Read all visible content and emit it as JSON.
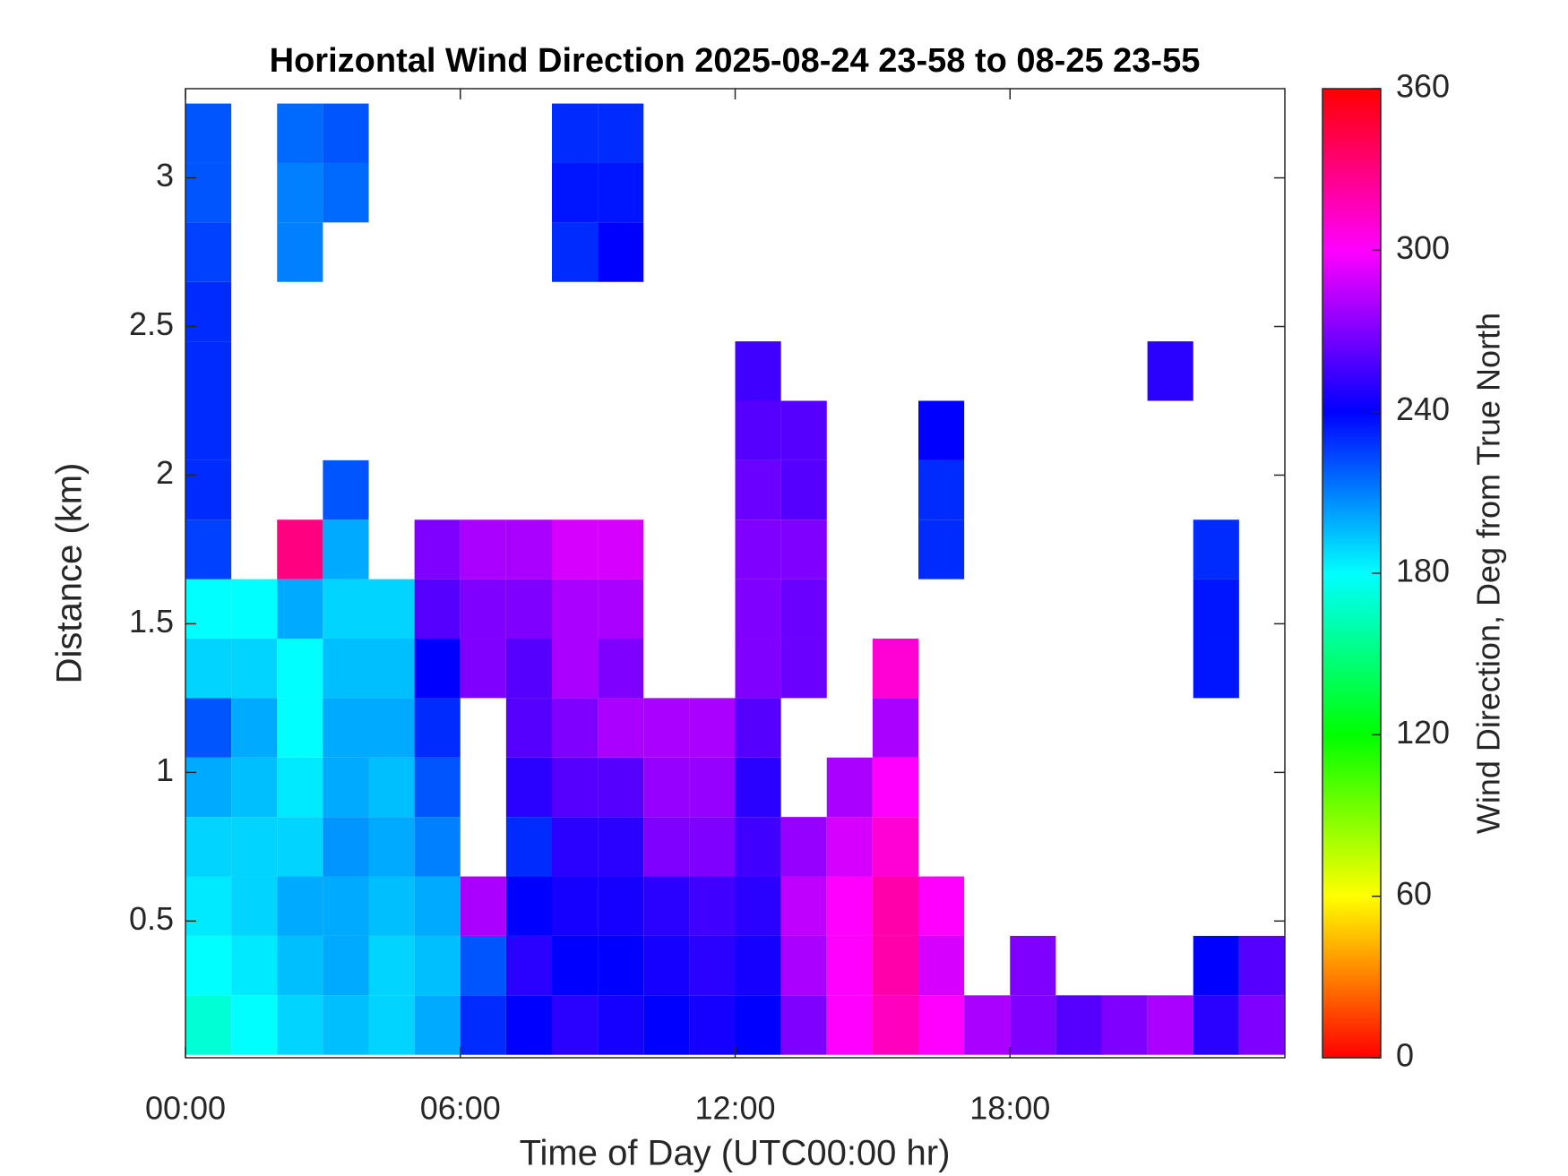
{
  "chart_data": {
    "type": "heatmap",
    "title": "Horizontal Wind Direction 2025-08-24 23-58 to 08-25 23-55",
    "xlabel": "Time of Day (UTC00:00 hr)",
    "ylabel": "Distance (km)",
    "colorbar_label": "Wind Direction, Deg from True North",
    "colormap": "hsv",
    "clim": [
      0,
      360
    ],
    "cticks": [
      0,
      60,
      120,
      180,
      240,
      300,
      360
    ],
    "xlim": [
      0,
      24
    ],
    "xticks": [
      {
        "value": 0,
        "label": "00:00"
      },
      {
        "value": 6,
        "label": "06:00"
      },
      {
        "value": 12,
        "label": "12:00"
      },
      {
        "value": 18,
        "label": "18:00"
      }
    ],
    "ylim": [
      0.04,
      3.3
    ],
    "yticks": [
      0.5,
      1,
      1.5,
      2,
      2.5,
      3
    ],
    "x": [
      0.5,
      1.5,
      2.5,
      3.5,
      4.5,
      5.5,
      6.5,
      7.5,
      8.5,
      9.5,
      10.5,
      11.5,
      12.5,
      13.5,
      14.5,
      15.5,
      16.5,
      17.5,
      18.5,
      19.5,
      20.5,
      21.5,
      22.5,
      23.5
    ],
    "y": [
      0.15,
      0.35,
      0.55,
      0.75,
      0.95,
      1.15,
      1.35,
      1.55,
      1.75,
      1.95,
      2.15,
      2.35,
      2.55,
      2.75,
      2.95,
      3.15
    ],
    "values": [
      [
        170,
        180,
        185,
        190,
        200,
        220,
        190,
        180,
        225,
        230,
        230,
        230,
        230,
        225,
        220,
        220
      ],
      [
        180,
        185,
        190,
        190,
        195,
        200,
        190,
        180,
        null,
        null,
        null,
        null,
        null,
        null,
        null,
        null
      ],
      [
        190,
        195,
        200,
        190,
        185,
        180,
        180,
        200,
        330,
        null,
        null,
        null,
        null,
        210,
        210,
        215
      ],
      [
        195,
        200,
        200,
        205,
        200,
        200,
        195,
        190,
        200,
        220,
        null,
        null,
        null,
        null,
        215,
        220
      ],
      [
        190,
        190,
        195,
        200,
        195,
        200,
        195,
        190,
        null,
        null,
        null,
        null,
        null,
        null,
        null,
        null
      ],
      [
        200,
        195,
        200,
        210,
        220,
        230,
        240,
        260,
        270,
        null,
        null,
        null,
        null,
        null,
        null,
        null
      ],
      [
        230,
        220,
        280,
        null,
        null,
        null,
        270,
        270,
        280,
        null,
        null,
        null,
        null,
        null,
        null,
        null
      ],
      [
        240,
        250,
        240,
        230,
        250,
        260,
        260,
        270,
        280,
        null,
        null,
        null,
        null,
        null,
        null,
        null
      ],
      [
        250,
        240,
        245,
        250,
        260,
        270,
        280,
        280,
        290,
        null,
        null,
        null,
        null,
        230,
        235,
        230
      ],
      [
        245,
        240,
        245,
        250,
        260,
        280,
        270,
        280,
        290,
        null,
        null,
        null,
        null,
        240,
        235,
        230
      ],
      [
        240,
        245,
        250,
        270,
        275,
        280,
        null,
        null,
        null,
        null,
        null,
        null,
        null,
        null,
        null,
        null
      ],
      [
        245,
        250,
        255,
        270,
        275,
        280,
        null,
        null,
        null,
        null,
        null,
        null,
        null,
        null,
        null,
        null
      ],
      [
        240,
        245,
        250,
        255,
        250,
        260,
        270,
        270,
        270,
        265,
        260,
        255,
        null,
        null,
        null,
        null
      ],
      [
        270,
        280,
        285,
        275,
        null,
        null,
        265,
        265,
        270,
        260,
        260,
        null,
        null,
        null,
        null,
        null
      ],
      [
        300,
        300,
        300,
        290,
        280,
        null,
        null,
        null,
        null,
        null,
        null,
        null,
        null,
        null,
        null,
        null
      ],
      [
        315,
        320,
        320,
        310,
        300,
        280,
        310,
        null,
        null,
        null,
        null,
        null,
        null,
        null,
        null,
        null
      ],
      [
        300,
        290,
        300,
        null,
        null,
        null,
        null,
        null,
        230,
        230,
        240,
        null,
        null,
        null,
        null,
        null
      ],
      [
        280,
        null,
        null,
        null,
        null,
        null,
        null,
        null,
        null,
        null,
        null,
        null,
        null,
        null,
        null,
        null
      ],
      [
        270,
        270,
        null,
        null,
        null,
        null,
        null,
        null,
        null,
        null,
        null,
        null,
        null,
        null,
        null,
        null
      ],
      [
        260,
        null,
        null,
        null,
        null,
        null,
        null,
        null,
        null,
        null,
        null,
        null,
        null,
        null,
        null,
        null
      ],
      [
        270,
        null,
        null,
        null,
        null,
        null,
        null,
        null,
        null,
        null,
        null,
        null,
        null,
        null,
        null,
        null
      ],
      [
        280,
        null,
        null,
        null,
        null,
        null,
        null,
        null,
        null,
        null,
        null,
        250,
        null,
        null,
        null,
        null
      ],
      [
        250,
        240,
        null,
        null,
        null,
        null,
        235,
        235,
        230,
        null,
        null,
        null,
        null,
        null,
        null,
        null
      ],
      [
        270,
        260,
        null,
        null,
        null,
        null,
        null,
        null,
        null,
        null,
        null,
        null,
        null,
        null,
        null,
        null
      ]
    ]
  }
}
